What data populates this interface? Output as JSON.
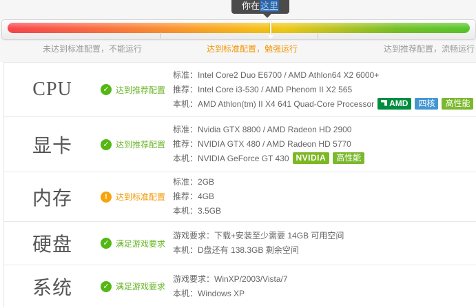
{
  "meter": {
    "tooltip": {
      "prefix": "你在",
      "link": "这里"
    },
    "marker_position_pct": 56.6,
    "zones": [
      {
        "text": "未达到标准配置，不能运行",
        "tone": "gray"
      },
      {
        "text": "达到标准配置，勉强运行",
        "tone": "orange"
      },
      {
        "text": "达到推荐配置，流畅运行",
        "tone": "gray"
      }
    ],
    "colors": {
      "gradient_red": "#f9464e",
      "gradient_orange": "#fb9a2c",
      "gradient_yellow": "#f8bb1b",
      "gradient_green": "#58c62c",
      "zone_gray": "#999999",
      "zone_orange": "#f39400",
      "tooltip_bg": "#4b4b4b"
    }
  },
  "status_colors": {
    "green": "#68b425",
    "orange": "#f39800"
  },
  "rows": [
    {
      "label": "CPU",
      "status": {
        "text": "达到推荐配置",
        "tone": "green",
        "icon": "check-circle",
        "glyph": "✓"
      },
      "lines": [
        {
          "key": "标准：",
          "value": "Intel Core2 Duo E6700 / AMD Athlon64 X2 6000+"
        },
        {
          "key": "推荐：",
          "value": "Intel Core i3-530 / AMD Phenom II X2 565"
        },
        {
          "key": "本机：",
          "value": "AMD Athlon(tm) II X4 641 Quad-Core Processor"
        }
      ],
      "badges": [
        {
          "type": "amd",
          "text": "AMD"
        },
        {
          "type": "quad",
          "text": "四核"
        },
        {
          "type": "perf",
          "text": "高性能"
        }
      ]
    },
    {
      "label": "显卡",
      "status": {
        "text": "达到推荐配置",
        "tone": "green",
        "icon": "check-circle",
        "glyph": "✓"
      },
      "lines": [
        {
          "key": "标准：",
          "value": "Nvidia GTX 8800 / AMD Radeon HD 2900"
        },
        {
          "key": "推荐：",
          "value": "NVIDIA GTX 480 / AMD Radeon HD 5770"
        },
        {
          "key": "本机：",
          "value": "NVIDIA GeForce GT 430"
        }
      ],
      "badges": [
        {
          "type": "nvidia",
          "text": "NVIDIA"
        },
        {
          "type": "perf",
          "text": "高性能"
        }
      ]
    },
    {
      "label": "内存",
      "status": {
        "text": "达到标准配置",
        "tone": "orange",
        "icon": "exclamation-circle",
        "glyph": "!"
      },
      "lines": [
        {
          "key": "标准：",
          "value": "2GB"
        },
        {
          "key": "推荐：",
          "value": "4GB"
        },
        {
          "key": "本机：",
          "value": "3.5GB"
        }
      ],
      "badges": []
    },
    {
      "label": "硬盘",
      "status": {
        "text": "满足游戏要求",
        "tone": "green",
        "icon": "check-circle",
        "glyph": "✓"
      },
      "lines": [
        {
          "key": "游戏要求：",
          "value": "下载+安装至少需要 14GB 可用空间"
        },
        {
          "key": "本机：",
          "value": "D盘还有 138.3GB 剩余空间"
        }
      ],
      "badges": []
    },
    {
      "label": "系统",
      "status": {
        "text": "满足游戏要求",
        "tone": "green",
        "icon": "check-circle",
        "glyph": "✓"
      },
      "lines": [
        {
          "key": "游戏要求：",
          "value": "WinXP/2003/Vista/7"
        },
        {
          "key": "本机：",
          "value": "Windows XP"
        }
      ],
      "badges": []
    }
  ]
}
